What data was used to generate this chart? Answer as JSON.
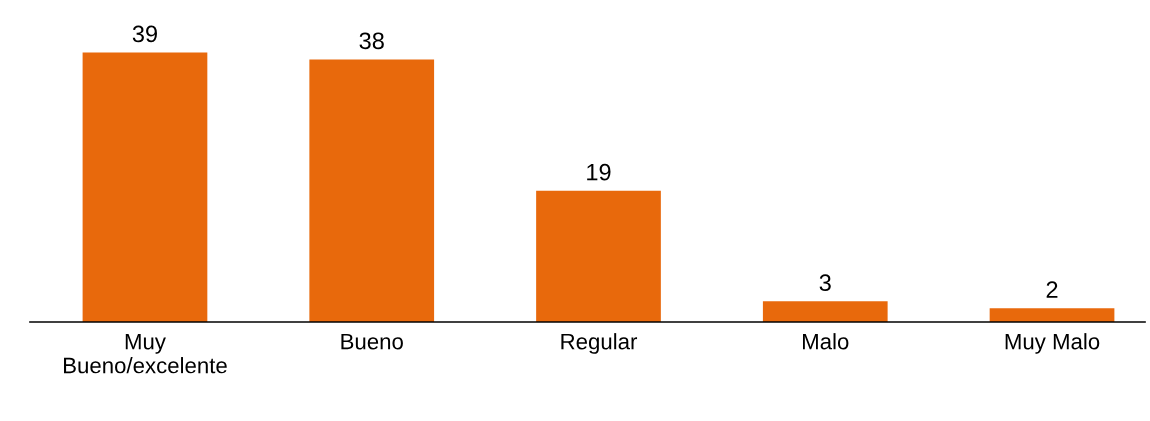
{
  "chart_data": {
    "type": "bar",
    "categories": [
      "Muy\nBueno/excelente",
      "Bueno",
      "Regular",
      "Malo",
      "Muy Malo"
    ],
    "values": [
      39,
      38,
      19,
      3,
      2
    ],
    "color": "#e8690c",
    "data_labels": true,
    "grid": false,
    "legend": false
  }
}
